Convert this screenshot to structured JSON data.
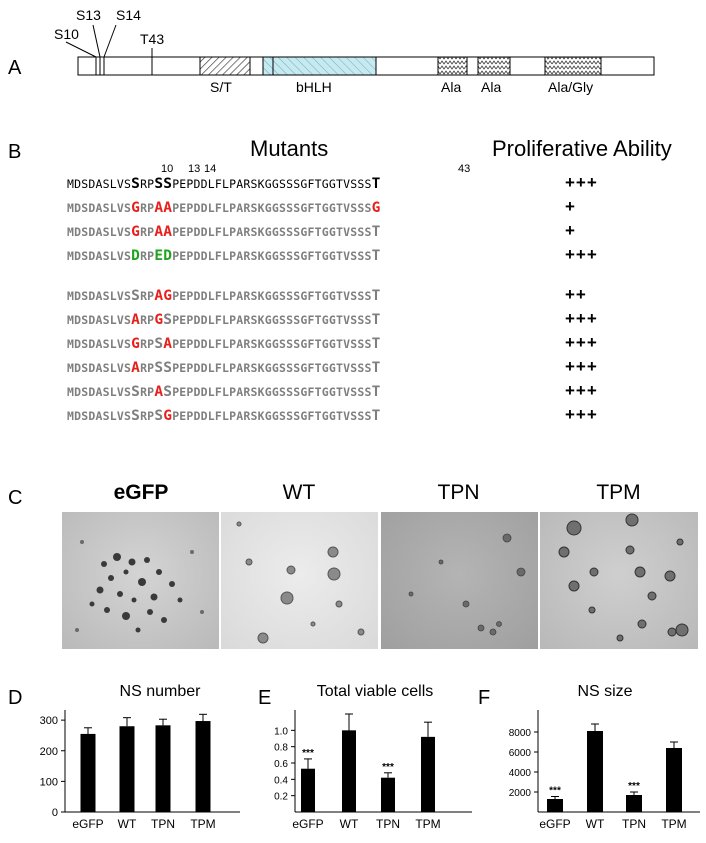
{
  "panels": {
    "a": "A",
    "b": "B",
    "c": "C",
    "d": "D",
    "e": "E",
    "f": "F"
  },
  "panelA": {
    "sites": [
      "S10",
      "S13",
      "S14",
      "T43"
    ],
    "domains": [
      "S/T",
      "bHLH",
      "Ala",
      "Ala",
      "Ala/Gly"
    ]
  },
  "panelB": {
    "mutants_header": "Mutants",
    "ability_header": "Proliferative Ability",
    "positions": [
      "10",
      "13",
      "14",
      "43"
    ],
    "rows": [
      {
        "style": "black",
        "a": "MDSDASLVS",
        "b": "S",
        "c": "RP",
        "d": "SS",
        "e": "PEPDDLFLPARSKGGSSSGFTGGTVSSS",
        "f": "T",
        "ability": "+++"
      },
      {
        "style": "gray",
        "a": "MDSDASLVS",
        "b": "G",
        "c": "RP",
        "d": "AA",
        "e": "PEPDDLFLPARSKGGSSSGFTGGTVSSS",
        "f": "G",
        "ability": "+"
      },
      {
        "style": "gray",
        "a": "MDSDASLVS",
        "b": "G",
        "c": "RP",
        "d": "AA",
        "e": "PEPDDLFLPARSKGGSSSGFTGGTVSSS",
        "f": "T",
        "ability": "+"
      },
      {
        "style": "gray",
        "a": "MDSDASLVS",
        "b": "D",
        "c": "RP",
        "d": "ED",
        "e": "PEPDDLFLPARSKGGSSSGFTGGTVSSS",
        "f": "T",
        "ability": "+++"
      },
      {
        "style": "gray",
        "a": "MDSDASLVS",
        "b": "S",
        "c": "RP",
        "d": "AG",
        "e": "PEPDDLFLPARSKGGSSSGFTGGTVSSS",
        "f": "T",
        "ability": "++"
      },
      {
        "style": "gray",
        "a": "MDSDASLVS",
        "b": "A",
        "c": "RP",
        "d": "GS",
        "e": "PEPDDLFLPARSKGGSSSGFTGGTVSSS",
        "f": "T",
        "ability": "+++"
      },
      {
        "style": "gray",
        "a": "MDSDASLVS",
        "b": "G",
        "c": "RP",
        "d": "SA",
        "e": "PEPDDLFLPARSKGGSSSGFTGGTVSSS",
        "f": "T",
        "ability": "+++"
      },
      {
        "style": "gray",
        "a": "MDSDASLVS",
        "b": "A",
        "c": "RP",
        "d": "SS",
        "e": "PEPDDLFLPARSKGGSSSGFTGGTVSSS",
        "f": "T",
        "ability": "+++"
      },
      {
        "style": "gray",
        "a": "MDSDASLVS",
        "b": "S",
        "c": "RP",
        "d": "AS",
        "e": "PEPDDLFLPARSKGGSSSGFTGGTVSSS",
        "f": "T",
        "ability": "+++"
      },
      {
        "style": "gray",
        "a": "MDSDASLVS",
        "b": "S",
        "c": "RP",
        "d": "SG",
        "e": "PEPDDLFLPARSKGGSSSGFTGGTVSSS",
        "f": "T",
        "ability": "+++"
      }
    ]
  },
  "panelC": {
    "images": [
      "eGFP",
      "WT",
      "TPN",
      "TPM"
    ]
  },
  "colors": {
    "mutation_red": "#e8201c",
    "phosphomimetic_green": "#1fa31f",
    "bhlh_fill": "#c6eaf0"
  },
  "chart_data": [
    {
      "type": "bar",
      "title": "NS number",
      "categories": [
        "eGFP",
        "WT",
        "TPN",
        "TPM"
      ],
      "values": [
        255,
        280,
        283,
        297
      ],
      "errors": [
        20,
        28,
        20,
        22
      ],
      "significance": [
        "",
        "",
        "",
        ""
      ],
      "ylim": [
        0,
        320
      ],
      "yticks": [
        "0",
        "100",
        "200",
        "300"
      ],
      "ytick_values": [
        0,
        100,
        200,
        300
      ]
    },
    {
      "type": "bar",
      "title": "Total viable cells",
      "categories": [
        "eGFP",
        "WT",
        "TPN",
        "TPM"
      ],
      "values": [
        0.53,
        1.0,
        0.42,
        0.92
      ],
      "errors": [
        0.12,
        0.2,
        0.06,
        0.18
      ],
      "significance": [
        "***",
        "",
        "***",
        ""
      ],
      "ylim": [
        0,
        1.2
      ],
      "yticks": [
        "0.2",
        "0.4",
        "0.6",
        "0.8",
        "1.0"
      ],
      "ytick_values": [
        0.2,
        0.4,
        0.6,
        0.8,
        1.0
      ]
    },
    {
      "type": "bar",
      "title": "NS size",
      "categories": [
        "eGFP",
        "WT",
        "TPN",
        "TPM"
      ],
      "values": [
        1300,
        8100,
        1700,
        6400
      ],
      "errors": [
        250,
        700,
        300,
        600
      ],
      "significance": [
        "***",
        "",
        "***",
        ""
      ],
      "ylim": [
        0,
        9800
      ],
      "yticks": [
        "2000",
        "4000",
        "6000",
        "8000"
      ],
      "ytick_values": [
        2000,
        4000,
        6000,
        8000
      ]
    }
  ]
}
